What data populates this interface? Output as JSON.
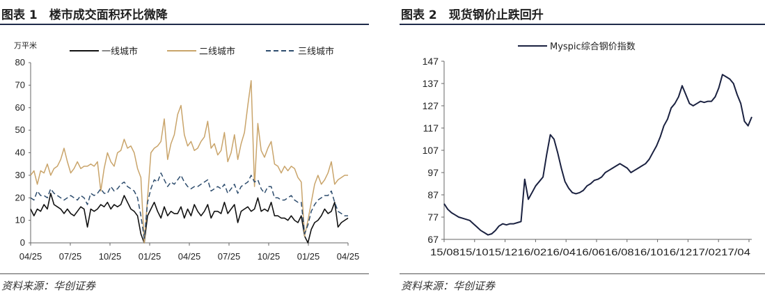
{
  "left": {
    "title": "图表 1　楼市成交面积环比微降",
    "source": "资料来源：华创证券",
    "chart_data": {
      "type": "line",
      "title": "",
      "ylabel": "万平米",
      "ylim": [
        0,
        80
      ],
      "yticks": [
        "0",
        "10",
        "20",
        "30",
        "40",
        "50",
        "60",
        "70",
        "80"
      ],
      "xticks": [
        "04/25",
        "07/25",
        "10/25",
        "01/25",
        "04/25",
        "07/25",
        "10/25",
        "01/25",
        "04/25"
      ],
      "legend_position": "top",
      "series": [
        {
          "name": "一线城市",
          "color": "#111111",
          "dash": "solid",
          "values": [
            15,
            12,
            15,
            14,
            17,
            15,
            22,
            17,
            16,
            15,
            13,
            15,
            13,
            12,
            14,
            16,
            15,
            7,
            15,
            14,
            15,
            17,
            16,
            18,
            15,
            17,
            16,
            17,
            21,
            18,
            15,
            14,
            12,
            4,
            0,
            12,
            15,
            18,
            14,
            11,
            16,
            12,
            14,
            13,
            13,
            16,
            11,
            15,
            12,
            17,
            14,
            12,
            14,
            17,
            11,
            14,
            14,
            13,
            18,
            13,
            15,
            17,
            9,
            14,
            15,
            16,
            14,
            15,
            20,
            14,
            15,
            14,
            18,
            12,
            12,
            11,
            11,
            10,
            12,
            10,
            9,
            12,
            3,
            0,
            6,
            9,
            10,
            12,
            15,
            13,
            14,
            18,
            7,
            9,
            10,
            11
          ]
        },
        {
          "name": "二线城市",
          "color": "#c9a46a",
          "dash": "solid",
          "values": [
            30,
            32,
            26,
            32,
            31,
            35,
            30,
            33,
            34,
            37,
            42,
            36,
            31,
            33,
            36,
            33,
            34,
            34,
            35,
            34,
            36,
            23,
            33,
            40,
            36,
            34,
            40,
            41,
            46,
            42,
            43,
            40,
            33,
            29,
            0,
            20,
            40,
            42,
            43,
            45,
            55,
            37,
            44,
            48,
            57,
            61,
            48,
            43,
            45,
            41,
            42,
            45,
            47,
            54,
            42,
            44,
            39,
            41,
            49,
            36,
            40,
            48,
            37,
            44,
            49,
            61,
            72,
            25,
            53,
            41,
            38,
            42,
            45,
            35,
            34,
            31,
            34,
            32,
            34,
            33,
            29,
            27,
            3,
            10,
            18,
            26,
            30,
            26,
            28,
            31,
            36,
            26,
            28,
            29,
            30,
            30
          ]
        },
        {
          "name": "三线城市",
          "color": "#2e4d6e",
          "dash": "dashed",
          "values": [
            20,
            19,
            23,
            21,
            21,
            20,
            24,
            22,
            21,
            20,
            19,
            20,
            21,
            20,
            19,
            21,
            20,
            17,
            22,
            21,
            22,
            24,
            22,
            22,
            25,
            23,
            24,
            26,
            27,
            25,
            24,
            23,
            20,
            12,
            2,
            18,
            24,
            28,
            27,
            31,
            28,
            25,
            27,
            26,
            28,
            30,
            27,
            25,
            24,
            25,
            25,
            26,
            27,
            28,
            23,
            24,
            25,
            24,
            26,
            22,
            24,
            26,
            22,
            25,
            26,
            27,
            30,
            27,
            28,
            24,
            22,
            25,
            25,
            20,
            20,
            19,
            19,
            20,
            21,
            19,
            18,
            18,
            4,
            8,
            14,
            17,
            19,
            20,
            21,
            21,
            23,
            18,
            14,
            13,
            12,
            12
          ]
        }
      ]
    }
  },
  "right": {
    "title": "图表 2　现货钢价止跌回升",
    "source": "资料来源：华创证券",
    "chart_data": {
      "type": "line",
      "title": "",
      "ylim": [
        67,
        147
      ],
      "yticks": [
        "67",
        "77",
        "87",
        "97",
        "107",
        "117",
        "127",
        "137",
        "147"
      ],
      "xticks": [
        "15/08",
        "15/10",
        "15/12",
        "16/02",
        "16/04",
        "16/06",
        "16/08",
        "16/10",
        "16/12",
        "17/02",
        "17/04"
      ],
      "xticks_rendered": "15/0815/1015/1216/0216/0416/0616/0816/1016/1217/0217/04",
      "legend_position": "top",
      "series": [
        {
          "name": "Myspic综合钢价指数",
          "color": "#1a2140",
          "dash": "solid",
          "values": [
            83,
            80.5,
            79,
            78,
            77,
            76.5,
            76,
            75.5,
            74,
            72.5,
            71,
            70,
            69,
            69.5,
            71,
            73,
            74,
            73.5,
            74,
            74,
            74.5,
            75,
            94,
            85,
            88,
            91,
            93,
            95,
            105,
            114,
            112,
            106,
            99,
            93,
            90,
            88,
            87.5,
            88,
            89,
            91,
            92,
            93.5,
            94,
            95,
            97,
            98,
            99,
            100,
            101,
            100,
            99,
            97,
            98,
            99,
            100,
            101,
            103,
            106,
            109,
            113,
            118,
            121,
            126,
            128,
            131,
            136,
            132,
            128,
            127,
            128,
            129,
            128.5,
            129,
            129,
            131,
            135,
            141,
            140,
            139,
            137,
            132,
            128,
            120,
            118,
            122
          ]
        }
      ]
    }
  }
}
